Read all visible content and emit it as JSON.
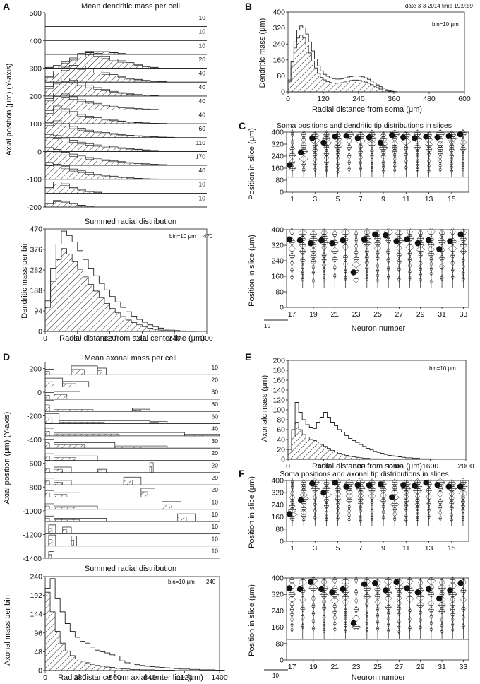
{
  "header": {
    "date_text": "date 3-3-2014  time 19:9:59"
  },
  "panel_letters": [
    "A",
    "B",
    "C",
    "D",
    "E",
    "F"
  ],
  "chart_data": [
    {
      "id": "A-top",
      "type": "bar",
      "title": "Mean dendritic mass per cell",
      "ylabel": "Axial position (μm) (Y-axis)",
      "ylim": [
        -200,
        500
      ],
      "yticks": [
        500,
        400,
        300,
        200,
        100,
        0,
        -100,
        -200
      ],
      "row_scale_labels": [
        "10",
        "10",
        "10",
        "20",
        "40",
        "40",
        "40",
        "40",
        "60",
        "110",
        "170",
        "40",
        "10",
        "10"
      ]
    },
    {
      "id": "A-bottom",
      "type": "area",
      "title": "Summed radial distribution",
      "xlabel": "Radial distance from axial center line (μm)",
      "ylabel": "Dendritic mass per bin",
      "xlim": [
        0,
        300
      ],
      "ylim": [
        0,
        470
      ],
      "bin_label": "bin=10 μm",
      "max_label": "470",
      "xticks": [
        0,
        60,
        120,
        180,
        240,
        300
      ],
      "yticks": [
        0,
        94,
        188,
        282,
        376,
        470
      ],
      "x": [
        0,
        10,
        20,
        30,
        40,
        50,
        60,
        70,
        80,
        90,
        100,
        110,
        120,
        130,
        140,
        150,
        160,
        170,
        180,
        190,
        200,
        210,
        220,
        230,
        240,
        250,
        260,
        270
      ],
      "series": [
        {
          "name": "outer",
          "values": [
            140,
            290,
            400,
            460,
            440,
            410,
            370,
            330,
            290,
            255,
            220,
            190,
            160,
            135,
            110,
            90,
            70,
            55,
            42,
            30,
            22,
            15,
            10,
            6,
            4,
            2,
            1,
            0
          ]
        },
        {
          "name": "hatched",
          "values": [
            110,
            230,
            330,
            380,
            355,
            320,
            285,
            250,
            215,
            185,
            155,
            128,
            105,
            85,
            68,
            52,
            40,
            30,
            22,
            15,
            10,
            6,
            4,
            2,
            1,
            0,
            0,
            0
          ]
        }
      ]
    },
    {
      "id": "B",
      "type": "area",
      "xlabel": "Radial distance from soma (μm)",
      "ylabel": "Dendritic mass (μm)",
      "xlim": [
        0,
        600
      ],
      "ylim": [
        0,
        400
      ],
      "bin_label": "bin=10 μm",
      "xticks": [
        0,
        120,
        240,
        360,
        480,
        600
      ],
      "yticks": [
        0,
        80,
        160,
        240,
        320,
        400
      ],
      "x": [
        0,
        10,
        20,
        30,
        40,
        50,
        60,
        70,
        80,
        90,
        100,
        110,
        120,
        130,
        140,
        150,
        160,
        170,
        180,
        190,
        200,
        210,
        220,
        230,
        240,
        250,
        260,
        270,
        280,
        290,
        300,
        310,
        320,
        330,
        340,
        350,
        360
      ],
      "series": [
        {
          "name": "outer",
          "values": [
            60,
            150,
            250,
            310,
            330,
            320,
            290,
            250,
            205,
            165,
            130,
            105,
            88,
            78,
            70,
            66,
            64,
            64,
            66,
            70,
            74,
            77,
            79,
            80,
            78,
            75,
            70,
            63,
            54,
            45,
            35,
            26,
            18,
            11,
            6,
            3,
            1
          ]
        },
        {
          "name": "hatched",
          "values": [
            50,
            130,
            220,
            270,
            285,
            270,
            235,
            195,
            155,
            120,
            92,
            72,
            60,
            52,
            47,
            44,
            43,
            44,
            46,
            50,
            54,
            57,
            59,
            59,
            57,
            54,
            49,
            43,
            36,
            28,
            21,
            14,
            9,
            5,
            2,
            1,
            0
          ]
        }
      ]
    },
    {
      "id": "C",
      "type": "scatter",
      "title": "Soma positions and dendritic tip distributions in slices",
      "ylabel": "Position in slice (μm)",
      "xlabel": "Neuron number",
      "ylim": [
        0,
        400
      ],
      "yticks": [
        0,
        80,
        160,
        240,
        320,
        400
      ],
      "top_ticks": [
        "1",
        "3",
        "5",
        "7",
        "9",
        "11",
        "13",
        "15"
      ],
      "bottom_ticks": [
        "17",
        "19",
        "21",
        "23",
        "25",
        "27",
        "29",
        "31",
        "33"
      ],
      "scale_label": "10",
      "soma_top": [
        180,
        265,
        360,
        330,
        370,
        375,
        360,
        365,
        330,
        380,
        365,
        360,
        370,
        365,
        375,
        385
      ],
      "soma_bottom": [
        350,
        345,
        330,
        345,
        330,
        345,
        180,
        350,
        375,
        370,
        340,
        350,
        330,
        345,
        300,
        340,
        375
      ]
    },
    {
      "id": "D-top",
      "type": "area",
      "title": "Mean axonal mass per cell",
      "ylabel": "Axial position (μm) (Y-axis)",
      "ylim": [
        -1400,
        250
      ],
      "yticks": [
        200,
        0,
        -200,
        -400,
        -600,
        -800,
        -1000,
        -1200,
        -1400
      ],
      "row_scale_labels": [
        "10",
        "20",
        "30",
        "80",
        "60",
        "40",
        "30",
        "20",
        "20",
        "20",
        "20",
        "10",
        "10",
        "10",
        "10",
        "10"
      ]
    },
    {
      "id": "D-bottom",
      "type": "area",
      "title": "Summed radial distribution",
      "xlabel": "Radial distance from axial center line (μm)",
      "ylabel": "Axonal mass per bin",
      "xlim": [
        0,
        1400
      ],
      "ylim": [
        0,
        240
      ],
      "bin_label": "bin=10 μm",
      "max_label": "240",
      "xticks": [
        0,
        280,
        560,
        840,
        1120,
        1400
      ],
      "yticks": [
        0,
        48,
        96,
        144,
        192,
        240
      ],
      "x": [
        0,
        40,
        80,
        120,
        160,
        200,
        240,
        280,
        320,
        360,
        400,
        440,
        480,
        520,
        560,
        600,
        640,
        680,
        720,
        760,
        800,
        840,
        880,
        920,
        960,
        1000,
        1040,
        1080,
        1120,
        1160,
        1200,
        1240,
        1280,
        1320,
        1360,
        1400
      ],
      "series": [
        {
          "name": "outer",
          "values": [
            210,
            235,
            185,
            150,
            120,
            100,
            85,
            75,
            70,
            60,
            52,
            48,
            45,
            40,
            37,
            25,
            20,
            17,
            15,
            13,
            11,
            10,
            9,
            8,
            7,
            6,
            5,
            4,
            4,
            3,
            3,
            2,
            2,
            2,
            1,
            1
          ]
        },
        {
          "name": "hatched",
          "values": [
            200,
            150,
            100,
            70,
            50,
            38,
            30,
            24,
            20,
            16,
            13,
            11,
            9,
            8,
            6,
            5,
            4,
            3,
            3,
            2,
            2,
            2,
            1,
            1,
            1,
            1,
            0,
            0,
            0,
            0,
            0,
            0,
            0,
            0,
            0,
            0
          ]
        }
      ]
    },
    {
      "id": "E",
      "type": "area",
      "xlabel": "Radial distance from soma (μm)",
      "ylabel": "Axonalc mass (μm)",
      "xlim": [
        0,
        2000
      ],
      "ylim": [
        0,
        200
      ],
      "bin_label": "bin=10 μm",
      "xticks": [
        0,
        400,
        800,
        1200,
        1600,
        2000
      ],
      "yticks": [
        0,
        20,
        40,
        60,
        80,
        100,
        120,
        140,
        160,
        180,
        200
      ],
      "x": [
        0,
        40,
        80,
        120,
        160,
        200,
        240,
        280,
        320,
        360,
        400,
        440,
        480,
        520,
        560,
        600,
        640,
        680,
        720,
        760,
        800,
        840,
        880,
        920,
        960,
        1000,
        1040,
        1080,
        1120,
        1160,
        1200,
        1240,
        1280,
        1320,
        1360,
        1400,
        1440,
        1480,
        1520,
        1560,
        1600
      ],
      "series": [
        {
          "name": "outer",
          "values": [
            20,
            60,
            115,
            95,
            80,
            70,
            65,
            62,
            75,
            85,
            95,
            85,
            75,
            68,
            60,
            55,
            48,
            42,
            38,
            34,
            30,
            26,
            22,
            19,
            16,
            14,
            12,
            10,
            8,
            7,
            6,
            5,
            4,
            3,
            3,
            2,
            2,
            1,
            1,
            1,
            0
          ]
        },
        {
          "name": "hatched",
          "values": [
            15,
            45,
            75,
            60,
            50,
            45,
            40,
            38,
            35,
            30,
            26,
            22,
            18,
            15,
            12,
            10,
            8,
            6,
            5,
            4,
            3,
            2,
            2,
            1,
            1,
            1,
            0,
            0,
            0,
            0,
            0,
            0,
            0,
            0,
            0,
            0,
            0,
            0,
            0,
            0,
            0
          ]
        }
      ]
    },
    {
      "id": "F",
      "type": "scatter",
      "title": "Soma positions and axonal tip distributions in slices",
      "ylabel": "Position in slice (μm)",
      "xlabel": "Neuron number",
      "ylim": [
        0,
        400
      ],
      "yticks": [
        0,
        80,
        160,
        240,
        320,
        400
      ],
      "top_ticks": [
        "1",
        "3",
        "5",
        "7",
        "9",
        "11",
        "13",
        "15"
      ],
      "bottom_ticks": [
        "17",
        "19",
        "21",
        "23",
        "25",
        "27",
        "29",
        "31",
        "33"
      ],
      "scale_label": "10",
      "soma_top": [
        180,
        270,
        380,
        320,
        385,
        360,
        370,
        370,
        375,
        290,
        370,
        365,
        385,
        370,
        360,
        360
      ],
      "soma_bottom": [
        350,
        345,
        380,
        345,
        330,
        345,
        180,
        370,
        375,
        340,
        380,
        350,
        330,
        345,
        300,
        340,
        375
      ]
    }
  ]
}
